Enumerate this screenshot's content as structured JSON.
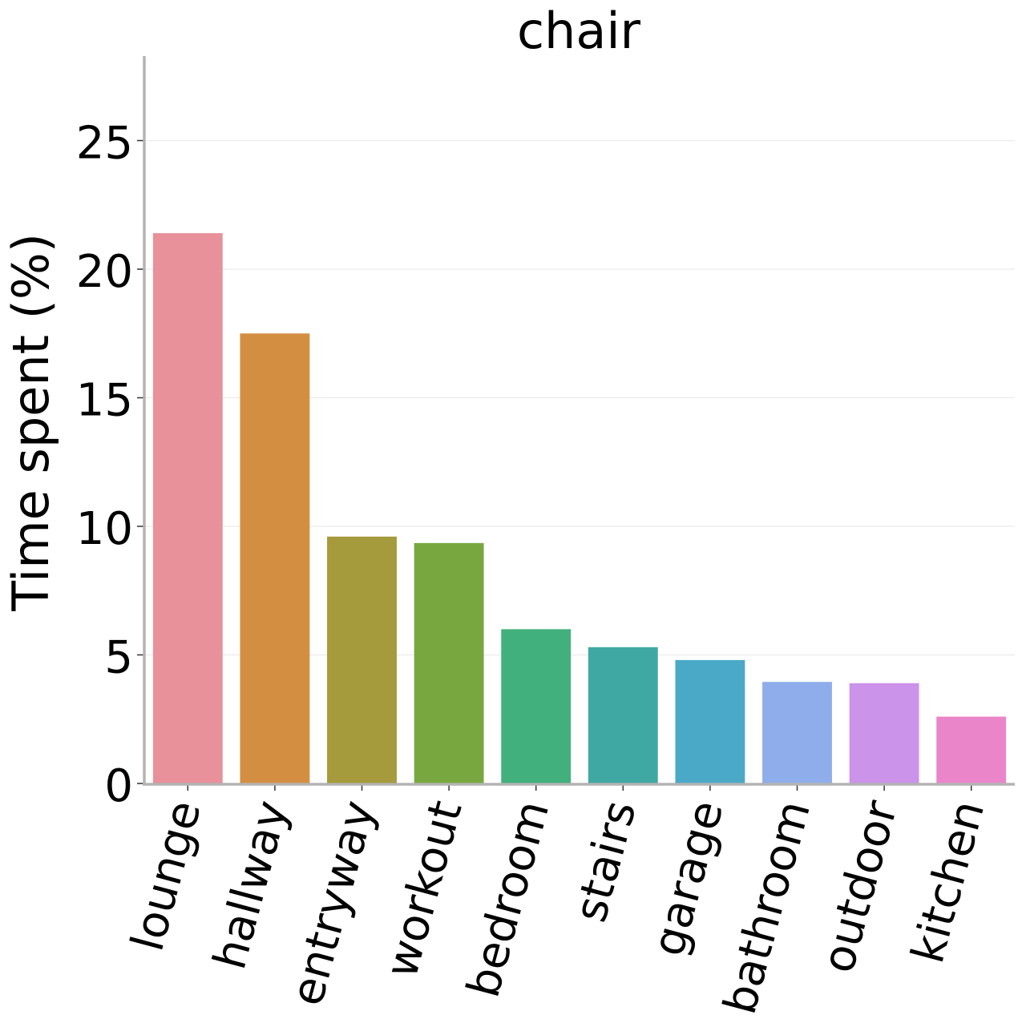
{
  "chart_data": {
    "type": "bar",
    "title": "chair",
    "xlabel": "",
    "ylabel": "Time spent (%)",
    "ylim": [
      0,
      28.3
    ],
    "yticks": [
      0,
      5,
      10,
      15,
      20,
      25
    ],
    "grid": true,
    "categories": [
      "lounge",
      "hallway",
      "entryway",
      "workout",
      "bedroom",
      "stairs",
      "garage",
      "bathroom",
      "outdoor",
      "kitchen"
    ],
    "values": [
      21.4,
      17.5,
      9.6,
      9.35,
      6.0,
      5.3,
      4.8,
      3.95,
      3.9,
      2.6
    ],
    "colors": [
      "#e8919b",
      "#d48e42",
      "#a59a3c",
      "#78a73f",
      "#42b07c",
      "#40a8a2",
      "#4aa9c7",
      "#8fadea",
      "#cb93e9",
      "#eb85ca"
    ]
  }
}
